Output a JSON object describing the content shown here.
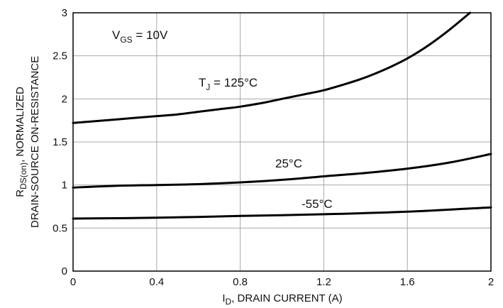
{
  "chart_data": {
    "type": "line",
    "xlabel": {
      "main": "I",
      "sub": "D",
      "rest": ", DRAIN CURRENT (A)"
    },
    "ylabel": {
      "line1_main": "R",
      "line1_sub": "DS(on)",
      "line1_rest": ", NORMALIZED",
      "line2": "DRAIN-SOURCE ON-RESISTANCE"
    },
    "xlim": [
      0,
      2
    ],
    "ylim": [
      0,
      3
    ],
    "x_ticks": [
      0,
      0.4,
      0.8,
      1.2,
      1.6,
      2
    ],
    "x_tick_labels": [
      "0",
      "0.4",
      "0.8",
      "1.2",
      "1.6",
      "2"
    ],
    "y_ticks": [
      0,
      0.5,
      1,
      1.5,
      2,
      2.5,
      3
    ],
    "y_tick_labels": [
      "0",
      "0.5",
      "1",
      "1.5",
      "2",
      "2.5",
      "3"
    ],
    "grid": true,
    "condition": {
      "main": "V",
      "sub": "GS",
      "rest": " = 10V",
      "position": "top-left"
    },
    "series": [
      {
        "label_main": "T",
        "label_sub": "J",
        "label_rest": " = 125°C",
        "x": [
          0,
          0.1,
          0.2,
          0.3,
          0.4,
          0.5,
          0.6,
          0.7,
          0.8,
          0.9,
          1.0,
          1.1,
          1.2,
          1.3,
          1.4,
          1.5,
          1.6,
          1.7,
          1.8,
          1.9
        ],
        "y": [
          1.72,
          1.74,
          1.76,
          1.78,
          1.8,
          1.82,
          1.85,
          1.88,
          1.91,
          1.95,
          2.0,
          2.05,
          2.1,
          2.17,
          2.25,
          2.35,
          2.47,
          2.62,
          2.8,
          3.0
        ]
      },
      {
        "label_main": "25°C",
        "label_sub": "",
        "label_rest": "",
        "x": [
          0,
          0.2,
          0.4,
          0.6,
          0.8,
          1.0,
          1.2,
          1.4,
          1.6,
          1.8,
          2.0
        ],
        "y": [
          0.97,
          0.99,
          1.0,
          1.01,
          1.03,
          1.06,
          1.1,
          1.14,
          1.19,
          1.26,
          1.36
        ]
      },
      {
        "label_main": "-55°C",
        "label_sub": "",
        "label_rest": "",
        "x": [
          0,
          0.4,
          0.8,
          1.2,
          1.6,
          2.0
        ],
        "y": [
          0.61,
          0.62,
          0.64,
          0.66,
          0.69,
          0.74
        ]
      }
    ],
    "colors": {
      "curves": "#000000",
      "grid": "#a8a8a8",
      "frame": "#000000",
      "text": "#111111"
    }
  }
}
